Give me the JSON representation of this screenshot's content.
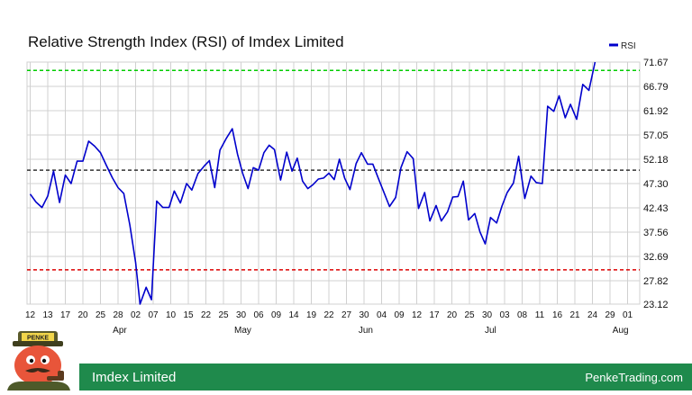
{
  "header": {
    "title": "Relative Strength Index (RSI) of Imdex Limited"
  },
  "footer": {
    "company": "Imdex Limited",
    "site": "PenkeTrading.com"
  },
  "logo": {
    "badge_text": "PENKE",
    "icon": "penke-mascot-icon"
  },
  "colors": {
    "series": "#0000cc",
    "overbought": "#00cc00",
    "oversold": "#dd0000",
    "midline": "#333333",
    "grid": "#d0d0d0",
    "footer": "#1f8a4c"
  },
  "chart_data": {
    "type": "line",
    "title": "Relative Strength Index (RSI) of Imdex Limited",
    "legend": {
      "entries": [
        "RSI"
      ],
      "placement": "top-right"
    },
    "grid": true,
    "ylim": [
      23.12,
      71.67
    ],
    "yticks": [
      "71.67",
      "66.79",
      "61.92",
      "57.05",
      "52.18",
      "47.30",
      "42.43",
      "37.56",
      "32.69",
      "27.82",
      "23.12"
    ],
    "xticks": [
      "12",
      "13",
      "17",
      "20",
      "25",
      "28",
      "02",
      "07",
      "10",
      "15",
      "22",
      "25",
      "30",
      "06",
      "09",
      "14",
      "19",
      "22",
      "27",
      "30",
      "04",
      "09",
      "12",
      "17",
      "20",
      "25",
      "30",
      "03",
      "08",
      "11",
      "16",
      "21",
      "24",
      "29",
      "01"
    ],
    "months": [
      {
        "label": "Apr",
        "index": 5.1
      },
      {
        "label": "May",
        "index": 12.1
      },
      {
        "label": "Jun",
        "index": 19.1
      },
      {
        "label": "Jul",
        "index": 26.2
      },
      {
        "label": "Aug",
        "index": 33.6
      }
    ],
    "reference_lines": [
      {
        "value": 70,
        "style": "dashed",
        "color": "#00cc00"
      },
      {
        "value": 50,
        "style": "dashed",
        "color": "#333333"
      },
      {
        "value": 30,
        "style": "dashed",
        "color": "#dd0000"
      }
    ],
    "series": [
      {
        "name": "RSI",
        "color": "#0000cc",
        "points": [
          [
            0,
            45.2
          ],
          [
            0.33,
            43.6
          ],
          [
            0.67,
            42.5
          ],
          [
            1,
            44.8
          ],
          [
            1.33,
            49.8
          ],
          [
            1.67,
            43.5
          ],
          [
            2,
            49.0
          ],
          [
            2.33,
            47.3
          ],
          [
            2.67,
            51.8
          ],
          [
            3,
            51.8
          ],
          [
            3.33,
            55.8
          ],
          [
            3.67,
            54.8
          ],
          [
            4,
            53.5
          ],
          [
            4.33,
            51.0
          ],
          [
            4.67,
            48.5
          ],
          [
            5,
            46.5
          ],
          [
            5.33,
            45.3
          ],
          [
            5.67,
            39.0
          ],
          [
            6,
            31.5
          ],
          [
            6.25,
            23.12
          ],
          [
            6.6,
            26.5
          ],
          [
            6.9,
            24.0
          ],
          [
            7.2,
            43.8
          ],
          [
            7.55,
            42.5
          ],
          [
            7.9,
            42.5
          ],
          [
            8.2,
            45.8
          ],
          [
            8.55,
            43.4
          ],
          [
            8.9,
            47.3
          ],
          [
            9.2,
            46.0
          ],
          [
            9.55,
            49.3
          ],
          [
            9.9,
            50.8
          ],
          [
            10.2,
            51.9
          ],
          [
            10.5,
            46.5
          ],
          [
            10.8,
            54.0
          ],
          [
            11.15,
            56.3
          ],
          [
            11.5,
            58.3
          ],
          [
            11.8,
            53.2
          ],
          [
            12.1,
            49.3
          ],
          [
            12.4,
            46.3
          ],
          [
            12.7,
            50.5
          ],
          [
            13.0,
            50.0
          ],
          [
            13.3,
            53.5
          ],
          [
            13.6,
            55.0
          ],
          [
            13.9,
            54.1
          ],
          [
            14.25,
            48.0
          ],
          [
            14.6,
            53.6
          ],
          [
            14.9,
            49.8
          ],
          [
            15.2,
            52.4
          ],
          [
            15.5,
            47.8
          ],
          [
            15.8,
            46.3
          ],
          [
            16.1,
            47.1
          ],
          [
            16.4,
            48.2
          ],
          [
            16.7,
            48.4
          ],
          [
            17.0,
            49.4
          ],
          [
            17.3,
            48.1
          ],
          [
            17.6,
            52.2
          ],
          [
            17.9,
            48.4
          ],
          [
            18.2,
            46.1
          ],
          [
            18.55,
            51.3
          ],
          [
            18.85,
            53.5
          ],
          [
            19.2,
            51.2
          ],
          [
            19.5,
            51.2
          ],
          [
            19.8,
            48.5
          ],
          [
            20.1,
            45.8
          ],
          [
            20.45,
            42.7
          ],
          [
            20.8,
            44.5
          ],
          [
            21.1,
            50.5
          ],
          [
            21.45,
            53.7
          ],
          [
            21.8,
            52.3
          ],
          [
            22.1,
            42.3
          ],
          [
            22.45,
            45.5
          ],
          [
            22.75,
            39.8
          ],
          [
            23.1,
            42.9
          ],
          [
            23.4,
            39.8
          ],
          [
            23.75,
            41.6
          ],
          [
            24.05,
            44.6
          ],
          [
            24.35,
            44.7
          ],
          [
            24.65,
            47.8
          ],
          [
            24.95,
            40.0
          ],
          [
            25.3,
            41.3
          ],
          [
            25.6,
            37.6
          ],
          [
            25.9,
            35.2
          ],
          [
            26.2,
            40.5
          ],
          [
            26.55,
            39.4
          ],
          [
            26.85,
            42.8
          ],
          [
            27.15,
            45.5
          ],
          [
            27.5,
            47.4
          ],
          [
            27.8,
            52.8
          ],
          [
            28.15,
            44.3
          ],
          [
            28.5,
            48.8
          ],
          [
            28.8,
            47.5
          ],
          [
            29.15,
            47.3
          ],
          [
            29.45,
            62.8
          ],
          [
            29.8,
            61.8
          ],
          [
            30.1,
            64.9
          ],
          [
            30.45,
            60.5
          ],
          [
            30.75,
            63.2
          ],
          [
            31.1,
            60.2
          ],
          [
            31.45,
            67.2
          ],
          [
            31.8,
            66.0
          ],
          [
            32.15,
            71.67
          ]
        ]
      }
    ]
  }
}
